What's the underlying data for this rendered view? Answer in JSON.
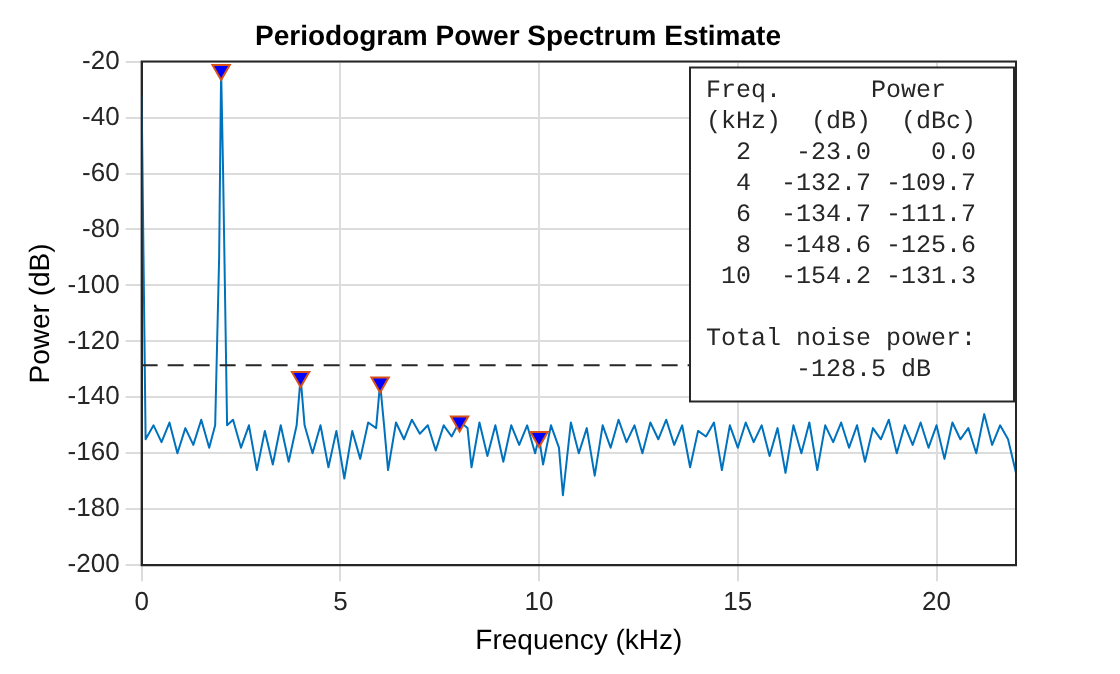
{
  "chart_data": {
    "type": "line",
    "title": "Periodogram Power Spectrum Estimate",
    "xlabel": "Frequency (kHz)",
    "ylabel": "Power (dB)",
    "xlim": [
      0,
      22
    ],
    "xticks": [
      0,
      5,
      10,
      15,
      20
    ],
    "ylim": [
      -200,
      -20
    ],
    "yticks": [
      -200,
      -180,
      -160,
      -140,
      -120,
      -100,
      -80,
      -60,
      -40,
      -20
    ],
    "grid": true,
    "legend": false,
    "series": [
      {
        "color": "#0072bd",
        "marker": "none",
        "x": [
          0,
          0.1,
          0.3,
          0.5,
          0.7,
          0.9,
          1.1,
          1.3,
          1.5,
          1.7,
          1.85,
          1.95,
          2.0,
          2.05,
          2.15,
          2.3,
          2.5,
          2.7,
          2.9,
          3.1,
          3.3,
          3.5,
          3.7,
          3.9,
          4.0,
          4.1,
          4.3,
          4.5,
          4.7,
          4.9,
          5.1,
          5.3,
          5.5,
          5.7,
          5.9,
          6.0,
          6.1,
          6.2,
          6.4,
          6.6,
          6.8,
          7.0,
          7.2,
          7.4,
          7.6,
          7.8,
          8.0,
          8.2,
          8.3,
          8.5,
          8.7,
          8.9,
          9.1,
          9.3,
          9.5,
          9.7,
          9.9,
          10.0,
          10.1,
          10.3,
          10.5,
          10.6,
          10.8,
          11.0,
          11.2,
          11.4,
          11.6,
          11.8,
          12.0,
          12.2,
          12.4,
          12.6,
          12.8,
          13.0,
          13.2,
          13.4,
          13.6,
          13.8,
          14.0,
          14.2,
          14.4,
          14.6,
          14.8,
          15.0,
          15.2,
          15.4,
          15.6,
          15.8,
          16.0,
          16.2,
          16.4,
          16.6,
          16.8,
          17.0,
          17.2,
          17.4,
          17.6,
          17.8,
          18.0,
          18.2,
          18.4,
          18.6,
          18.8,
          19.0,
          19.2,
          19.4,
          19.6,
          19.8,
          20.0,
          20.2,
          20.4,
          20.6,
          20.8,
          21.0,
          21.2,
          21.4,
          21.6,
          21.8,
          22.0
        ],
        "values": [
          -32,
          -155,
          -150,
          -156,
          -149,
          -160,
          -151,
          -157,
          -148,
          -158,
          -150,
          -90,
          -23,
          -60,
          -150,
          -148,
          -158,
          -150,
          -166,
          -152,
          -164,
          -150,
          -163,
          -150,
          -133,
          -150,
          -160,
          -150,
          -165,
          -152,
          -169,
          -152,
          -162,
          -149,
          -151,
          -135,
          -150,
          -166,
          -149,
          -155,
          -148,
          -153,
          -150,
          -159,
          -150,
          -154,
          -148.6,
          -151,
          -165,
          -149,
          -161,
          -150,
          -163,
          -150,
          -157,
          -150,
          -160,
          -154.2,
          -164,
          -150,
          -158,
          -175,
          -149,
          -160,
          -151,
          -168,
          -150,
          -158,
          -148,
          -156,
          -150,
          -160,
          -149,
          -155,
          -148,
          -157,
          -150,
          -165,
          -152,
          -154,
          -149,
          -166,
          -150,
          -158,
          -149,
          -156,
          -150,
          -161,
          -151,
          -167,
          -150,
          -160,
          -149,
          -166,
          -150,
          -156,
          -149,
          -158,
          -150,
          -163,
          -151,
          -155,
          -148,
          -160,
          -150,
          -157,
          -149,
          -158,
          -150,
          -162,
          -149,
          -155,
          -151,
          -160,
          -146,
          -157,
          -150,
          -155,
          -167
        ]
      },
      {
        "type": "scatter",
        "color": "#0000ff",
        "marker": "triangle",
        "x": [
          2,
          4,
          6,
          8,
          10
        ],
        "values": [
          -23.0,
          -132.7,
          -134.7,
          -148.6,
          -154.2
        ]
      }
    ],
    "ref_lines": [
      {
        "axis": "y",
        "value": -128.5,
        "color": "#262626",
        "line_style": "dashed"
      }
    ],
    "annotations": [
      "Freq.      Power",
      "(kHz)  (dB)  (dBc)",
      "  2   -23.0    0.0",
      "  4  -132.7 -109.7",
      "  6  -134.7 -111.7",
      "  8  -148.6 -125.6",
      " 10  -154.2 -131.3",
      "Total noise power:",
      "      -128.5 dB"
    ]
  }
}
